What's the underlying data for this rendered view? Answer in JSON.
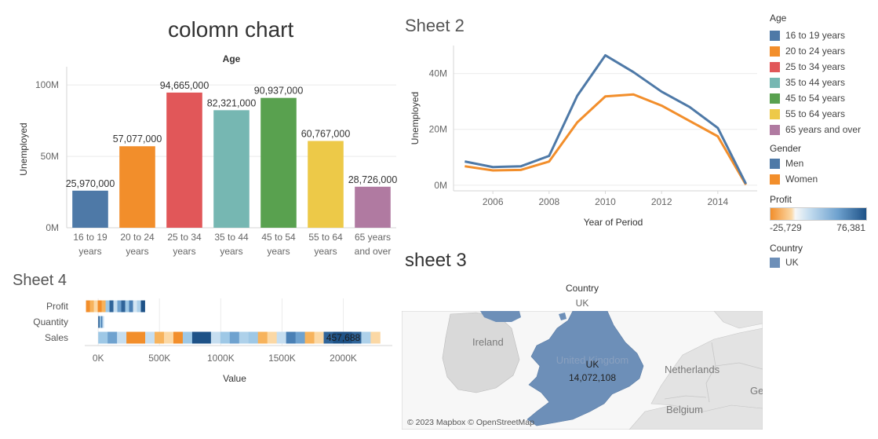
{
  "sheet1": {
    "title": "colomn chart",
    "header": "Age",
    "ylabel": "Unemployed",
    "chart_data": {
      "type": "bar",
      "categories": [
        [
          "16 to 19",
          "years"
        ],
        [
          "20 to 24",
          "years"
        ],
        [
          "25 to 34",
          "years"
        ],
        [
          "35 to 44",
          "years"
        ],
        [
          "45 to 54",
          "years"
        ],
        [
          "55 to 64",
          "years"
        ],
        [
          "65 years",
          "and over"
        ]
      ],
      "values": [
        25970000,
        57077000,
        94665000,
        82321000,
        90937000,
        60767000,
        28726000
      ],
      "data_labels": [
        "25,970,000",
        "57,077,000",
        "94,665,000",
        "82,321,000",
        "90,937,000",
        "60,767,000",
        "28,726,000"
      ],
      "colors": [
        "#4e79a7",
        "#f28e2b",
        "#e15759",
        "#76b7b2",
        "#59a14f",
        "#edc948",
        "#b07aa1"
      ],
      "yticks": [
        {
          "v": 0,
          "label": "0M"
        },
        {
          "v": 50000000,
          "label": "50M"
        },
        {
          "v": 100000000,
          "label": "100M"
        }
      ],
      "ylim": [
        0,
        110000000
      ]
    }
  },
  "sheet2": {
    "title": "Sheet 2",
    "xlabel": "Year of Period",
    "ylabel": "Unemployed",
    "chart_data": {
      "type": "line",
      "x": [
        2005,
        2006,
        2007,
        2008,
        2009,
        2010,
        2011,
        2012,
        2013,
        2014,
        2015
      ],
      "series": [
        {
          "name": "Men",
          "color": "#4e79a7",
          "values": [
            8.5,
            6.5,
            6.8,
            10.5,
            32,
            46.5,
            40.5,
            33.5,
            28,
            20.5,
            0.5
          ]
        },
        {
          "name": "Women",
          "color": "#f28e2b",
          "values": [
            6.8,
            5.3,
            5.5,
            8.5,
            22.5,
            31.8,
            32.5,
            28.5,
            23,
            17.5,
            0.2
          ]
        }
      ],
      "xticks": [
        2006,
        2008,
        2010,
        2012,
        2014
      ],
      "yticks": [
        {
          "v": 0,
          "label": "0M"
        },
        {
          "v": 20,
          "label": "20M"
        },
        {
          "v": 40,
          "label": "40M"
        }
      ],
      "xlim": [
        2004.6,
        2015.4
      ],
      "ylim": [
        -2,
        50
      ]
    }
  },
  "sheet3": {
    "title": "sheet 3",
    "header": "Country",
    "subheader": "UK",
    "labels": {
      "ireland": "Ireland",
      "uk": "UK",
      "uk_value": "14,072,108",
      "united_kingdom": "United Kingdom",
      "netherlands": "Netherlands",
      "belgium": "Belgium",
      "germany": "Ge"
    },
    "attribution": "© 2023 Mapbox © OpenStreetMap"
  },
  "sheet4": {
    "title": "Sheet 4",
    "xlabel": "Value",
    "chart_data": {
      "type": "bar",
      "categories": [
        "Profit",
        "Quantity",
        "Sales"
      ],
      "bars": [
        {
          "category": "Profit",
          "start": -100000,
          "end": 380000
        },
        {
          "category": "Quantity",
          "start": 0,
          "end": 45000
        },
        {
          "category": "Sales",
          "start": 0,
          "end": 2300000
        }
      ],
      "segment_colors": {
        "Profit": [
          "#f28e2b",
          "#f7b35c",
          "#fbd8a5",
          "#f28e2b",
          "#f7b35c",
          "#9ec8e6",
          "#2f6499",
          "#c6def0",
          "#6fa2cf",
          "#2f6499",
          "#9ec8e6",
          "#4a80b5",
          "#d3e6f3",
          "#aed1ea",
          "#1e5287"
        ],
        "Quantity": [
          "#2f6499",
          "#9ec8e6",
          "#4a80b5",
          "#c6def0"
        ],
        "Sales": [
          "#9ec8e6",
          "#6fa2cf",
          "#c6def0",
          "#f28e2b",
          "#f28e2b",
          "#c6def0",
          "#f7b35c",
          "#fbd8a5",
          "#f28e2b",
          "#9ec8e6",
          "#1e5287",
          "#1e5287",
          "#c6def0",
          "#9ec8e6",
          "#6fa2cf",
          "#aed1ea",
          "#9ec8e6",
          "#f7b35c",
          "#fbd8a5",
          "#c6def0",
          "#4a80b5",
          "#6fa2cf",
          "#f7b35c",
          "#fbd8a5",
          "#2f6499",
          "#1e5287",
          "#1e5287",
          "#2f6499",
          "#aed1ea",
          "#fbd8a5"
        ]
      },
      "annotation": "457,688",
      "xticks": [
        {
          "v": 0,
          "label": "0K"
        },
        {
          "v": 500000,
          "label": "500K"
        },
        {
          "v": 1000000,
          "label": "1000K"
        },
        {
          "v": 1500000,
          "label": "1500K"
        },
        {
          "v": 2000000,
          "label": "2000K"
        }
      ],
      "xlim": [
        -110000,
        2400000
      ]
    }
  },
  "legend": {
    "age_title": "Age",
    "age_items": [
      {
        "label": "16 to 19 years",
        "color": "#4e79a7"
      },
      {
        "label": "20 to 24 years",
        "color": "#f28e2b"
      },
      {
        "label": "25 to 34 years",
        "color": "#e15759"
      },
      {
        "label": "35 to 44 years",
        "color": "#76b7b2"
      },
      {
        "label": "45 to 54 years",
        "color": "#59a14f"
      },
      {
        "label": "55 to 64 years",
        "color": "#edc948"
      },
      {
        "label": "65 years and over",
        "color": "#b07aa1"
      }
    ],
    "gender_title": "Gender",
    "gender_items": [
      {
        "label": "Men",
        "color": "#4e79a7"
      },
      {
        "label": "Women",
        "color": "#f28e2b"
      }
    ],
    "profit_title": "Profit",
    "profit_min": "-25,729",
    "profit_max": "76,381",
    "country_title": "Country",
    "country_items": [
      {
        "label": "UK",
        "color": "#6d8fb8"
      }
    ]
  }
}
